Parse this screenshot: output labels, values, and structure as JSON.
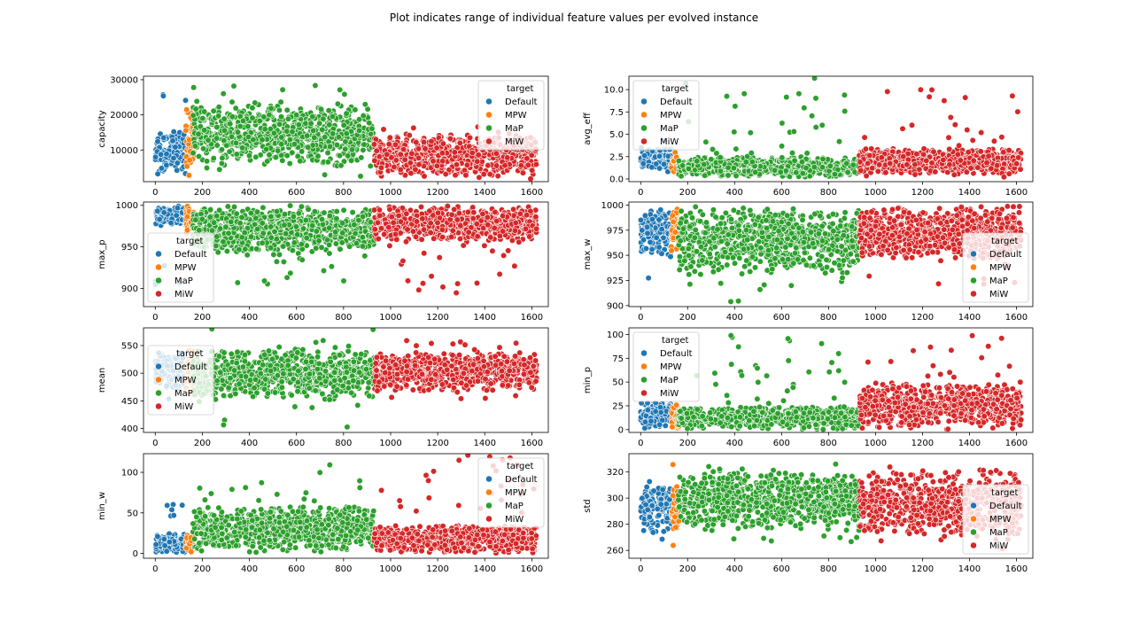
{
  "figure": {
    "title": "Plot indicates range of individual feature values per evolved instance"
  },
  "colors": {
    "Default": "#1f77b4",
    "MPW": "#ff7f0e",
    "MaP": "#2ca02c",
    "MiW": "#d62728"
  },
  "chart_data": [
    {
      "type": "scatter",
      "ylabel": "capacity",
      "xlim": [
        -50,
        1670
      ],
      "xticks": [
        0,
        200,
        400,
        600,
        800,
        1000,
        1200,
        1400,
        1600
      ],
      "ylim": [
        1000,
        31000
      ],
      "yticks": [
        10000,
        20000,
        30000
      ],
      "legend": {
        "title": "target",
        "location": "upper right",
        "entries": [
          "Default",
          "MPW",
          "MaP",
          "MiW"
        ]
      },
      "series": [
        {
          "name": "Default",
          "x_range": [
            0,
            130
          ],
          "y_range": [
            2000,
            26000
          ],
          "y_typical": [
            2000,
            16000
          ]
        },
        {
          "name": "MPW",
          "x_range": [
            130,
            165
          ],
          "y_range": [
            2000,
            26000
          ],
          "y_typical": [
            3000,
            23000
          ]
        },
        {
          "name": "MaP",
          "x_range": [
            160,
            930
          ],
          "y_range": [
            2000,
            30000
          ],
          "y_typical": [
            5000,
            24000
          ]
        },
        {
          "name": "MiW",
          "x_range": [
            930,
            1620
          ],
          "y_range": [
            1500,
            17000
          ],
          "y_typical": [
            2000,
            15000
          ]
        }
      ]
    },
    {
      "type": "scatter",
      "ylabel": "avg_eff",
      "xlim": [
        -50,
        1670
      ],
      "xticks": [
        0,
        200,
        400,
        600,
        800,
        1000,
        1200,
        1400,
        1600
      ],
      "ylim": [
        -0.3,
        11.5
      ],
      "yticks": [
        0.0,
        2.5,
        5.0,
        7.5,
        10.0
      ],
      "legend": {
        "title": "target",
        "location": "upper left",
        "entries": [
          "Default",
          "MPW",
          "MaP",
          "MiW"
        ]
      },
      "series": [
        {
          "name": "Default",
          "x_range": [
            0,
            130
          ],
          "y_range": [
            0.5,
            5.0
          ],
          "y_typical": [
            1.0,
            3.5
          ]
        },
        {
          "name": "MPW",
          "x_range": [
            130,
            165
          ],
          "y_range": [
            0.5,
            7.0
          ],
          "y_typical": [
            0.5,
            2.5
          ]
        },
        {
          "name": "MaP",
          "x_range": [
            160,
            930
          ],
          "y_range": [
            0.0,
            11.3
          ],
          "y_typical": [
            0.2,
            2.5
          ]
        },
        {
          "name": "MiW",
          "x_range": [
            930,
            1620
          ],
          "y_range": [
            0.2,
            10.0
          ],
          "y_typical": [
            0.5,
            3.5
          ]
        }
      ]
    },
    {
      "type": "scatter",
      "ylabel": "max_p",
      "xlim": [
        -50,
        1670
      ],
      "xticks": [
        0,
        200,
        400,
        600,
        800,
        1000,
        1200,
        1400,
        1600
      ],
      "ylim": [
        878,
        1004
      ],
      "yticks": [
        900,
        950,
        1000
      ],
      "legend": {
        "title": "target",
        "location": "lower left",
        "entries": [
          "Default",
          "MPW",
          "MaP",
          "MiW"
        ]
      },
      "series": [
        {
          "name": "Default",
          "x_range": [
            0,
            130
          ],
          "y_range": [
            880,
            1000
          ],
          "y_typical": [
            975,
            1000
          ]
        },
        {
          "name": "MPW",
          "x_range": [
            130,
            165
          ],
          "y_range": [
            960,
            1000
          ],
          "y_typical": [
            970,
            1000
          ]
        },
        {
          "name": "MaP",
          "x_range": [
            160,
            930
          ],
          "y_range": [
            903,
            1000
          ],
          "y_typical": [
            940,
            1000
          ]
        },
        {
          "name": "MiW",
          "x_range": [
            930,
            1620
          ],
          "y_range": [
            892,
            1000
          ],
          "y_typical": [
            955,
            1000
          ]
        }
      ]
    },
    {
      "type": "scatter",
      "ylabel": "max_w",
      "xlim": [
        -50,
        1670
      ],
      "xticks": [
        0,
        200,
        400,
        600,
        800,
        1000,
        1200,
        1400,
        1600
      ],
      "ylim": [
        899,
        1003
      ],
      "yticks": [
        900,
        925,
        950,
        975,
        1000
      ],
      "legend": {
        "title": "target",
        "location": "lower right",
        "entries": [
          "Default",
          "MPW",
          "MaP",
          "MiW"
        ]
      },
      "series": [
        {
          "name": "Default",
          "x_range": [
            0,
            130
          ],
          "y_range": [
            923,
            1000
          ],
          "y_typical": [
            950,
            1000
          ]
        },
        {
          "name": "MPW",
          "x_range": [
            130,
            165
          ],
          "y_range": [
            938,
            1000
          ],
          "y_typical": [
            955,
            1000
          ]
        },
        {
          "name": "MaP",
          "x_range": [
            160,
            930
          ],
          "y_range": [
            903,
            1000
          ],
          "y_typical": [
            930,
            1000
          ]
        },
        {
          "name": "MiW",
          "x_range": [
            930,
            1620
          ],
          "y_range": [
            921,
            1000
          ],
          "y_typical": [
            945,
            1000
          ]
        }
      ]
    },
    {
      "type": "scatter",
      "ylabel": "mean",
      "xlim": [
        -50,
        1670
      ],
      "xticks": [
        0,
        200,
        400,
        600,
        800,
        1000,
        1200,
        1400,
        1600
      ],
      "ylim": [
        393,
        582
      ],
      "yticks": [
        400,
        450,
        500,
        550
      ],
      "legend": {
        "title": "target",
        "location": "center left",
        "entries": [
          "Default",
          "MPW",
          "MaP",
          "MiW"
        ]
      },
      "series": [
        {
          "name": "Default",
          "x_range": [
            0,
            130
          ],
          "y_range": [
            450,
            555
          ],
          "y_typical": [
            470,
            540
          ]
        },
        {
          "name": "MPW",
          "x_range": [
            130,
            165
          ],
          "y_range": [
            450,
            578
          ],
          "y_typical": [
            470,
            540
          ]
        },
        {
          "name": "MaP",
          "x_range": [
            160,
            930
          ],
          "y_range": [
            396,
            580
          ],
          "y_typical": [
            450,
            545
          ]
        },
        {
          "name": "MiW",
          "x_range": [
            930,
            1620
          ],
          "y_range": [
            452,
            562
          ],
          "y_typical": [
            465,
            540
          ]
        }
      ]
    },
    {
      "type": "scatter",
      "ylabel": "min_p",
      "xlim": [
        -50,
        1670
      ],
      "xticks": [
        0,
        200,
        400,
        600,
        800,
        1000,
        1200,
        1400,
        1600
      ],
      "ylim": [
        -3,
        107
      ],
      "yticks": [
        0,
        25,
        50,
        75,
        100
      ],
      "legend": {
        "title": "target",
        "location": "upper left",
        "entries": [
          "Default",
          "MPW",
          "MaP",
          "MiW"
        ]
      },
      "series": [
        {
          "name": "Default",
          "x_range": [
            0,
            130
          ],
          "y_range": [
            0,
            42
          ],
          "y_typical": [
            0,
            30
          ]
        },
        {
          "name": "MPW",
          "x_range": [
            130,
            165
          ],
          "y_range": [
            0,
            40
          ],
          "y_typical": [
            0,
            25
          ]
        },
        {
          "name": "MaP",
          "x_range": [
            160,
            930
          ],
          "y_range": [
            0,
            103
          ],
          "y_typical": [
            0,
            25
          ]
        },
        {
          "name": "MiW",
          "x_range": [
            930,
            1620
          ],
          "y_range": [
            0,
            100
          ],
          "y_typical": [
            0,
            50
          ]
        }
      ]
    },
    {
      "type": "scatter",
      "ylabel": "min_w",
      "xlim": [
        -50,
        1670
      ],
      "xticks": [
        0,
        200,
        400,
        600,
        800,
        1000,
        1200,
        1400,
        1600
      ],
      "ylim": [
        -6,
        123
      ],
      "yticks": [
        0,
        50,
        100
      ],
      "legend": {
        "title": "target",
        "location": "upper right",
        "entries": [
          "Default",
          "MPW",
          "MaP",
          "MiW"
        ]
      },
      "series": [
        {
          "name": "Default",
          "x_range": [
            0,
            130
          ],
          "y_range": [
            0,
            72
          ],
          "y_typical": [
            0,
            25
          ]
        },
        {
          "name": "MPW",
          "x_range": [
            130,
            165
          ],
          "y_range": [
            0,
            60
          ],
          "y_typical": [
            0,
            25
          ]
        },
        {
          "name": "MaP",
          "x_range": [
            160,
            930
          ],
          "y_range": [
            0,
            110
          ],
          "y_typical": [
            0,
            60
          ]
        },
        {
          "name": "MiW",
          "x_range": [
            930,
            1620
          ],
          "y_range": [
            0,
            122
          ],
          "y_typical": [
            0,
            35
          ]
        }
      ]
    },
    {
      "type": "scatter",
      "ylabel": "std",
      "xlim": [
        -50,
        1670
      ],
      "xticks": [
        0,
        200,
        400,
        600,
        800,
        1000,
        1200,
        1400,
        1600
      ],
      "ylim": [
        254,
        334
      ],
      "yticks": [
        260,
        280,
        300,
        320
      ],
      "legend": {
        "title": "target",
        "location": "lower right",
        "entries": [
          "Default",
          "MPW",
          "MaP",
          "MiW"
        ]
      },
      "series": [
        {
          "name": "Default",
          "x_range": [
            0,
            130
          ],
          "y_range": [
            264,
            314
          ],
          "y_typical": [
            272,
            312
          ]
        },
        {
          "name": "MPW",
          "x_range": [
            130,
            165
          ],
          "y_range": [
            261,
            333
          ],
          "y_typical": [
            272,
            312
          ]
        },
        {
          "name": "MaP",
          "x_range": [
            160,
            930
          ],
          "y_range": [
            265,
            327
          ],
          "y_typical": [
            275,
            322
          ]
        },
        {
          "name": "MiW",
          "x_range": [
            930,
            1620
          ],
          "y_range": [
            256,
            327
          ],
          "y_typical": [
            270,
            322
          ]
        }
      ]
    }
  ]
}
